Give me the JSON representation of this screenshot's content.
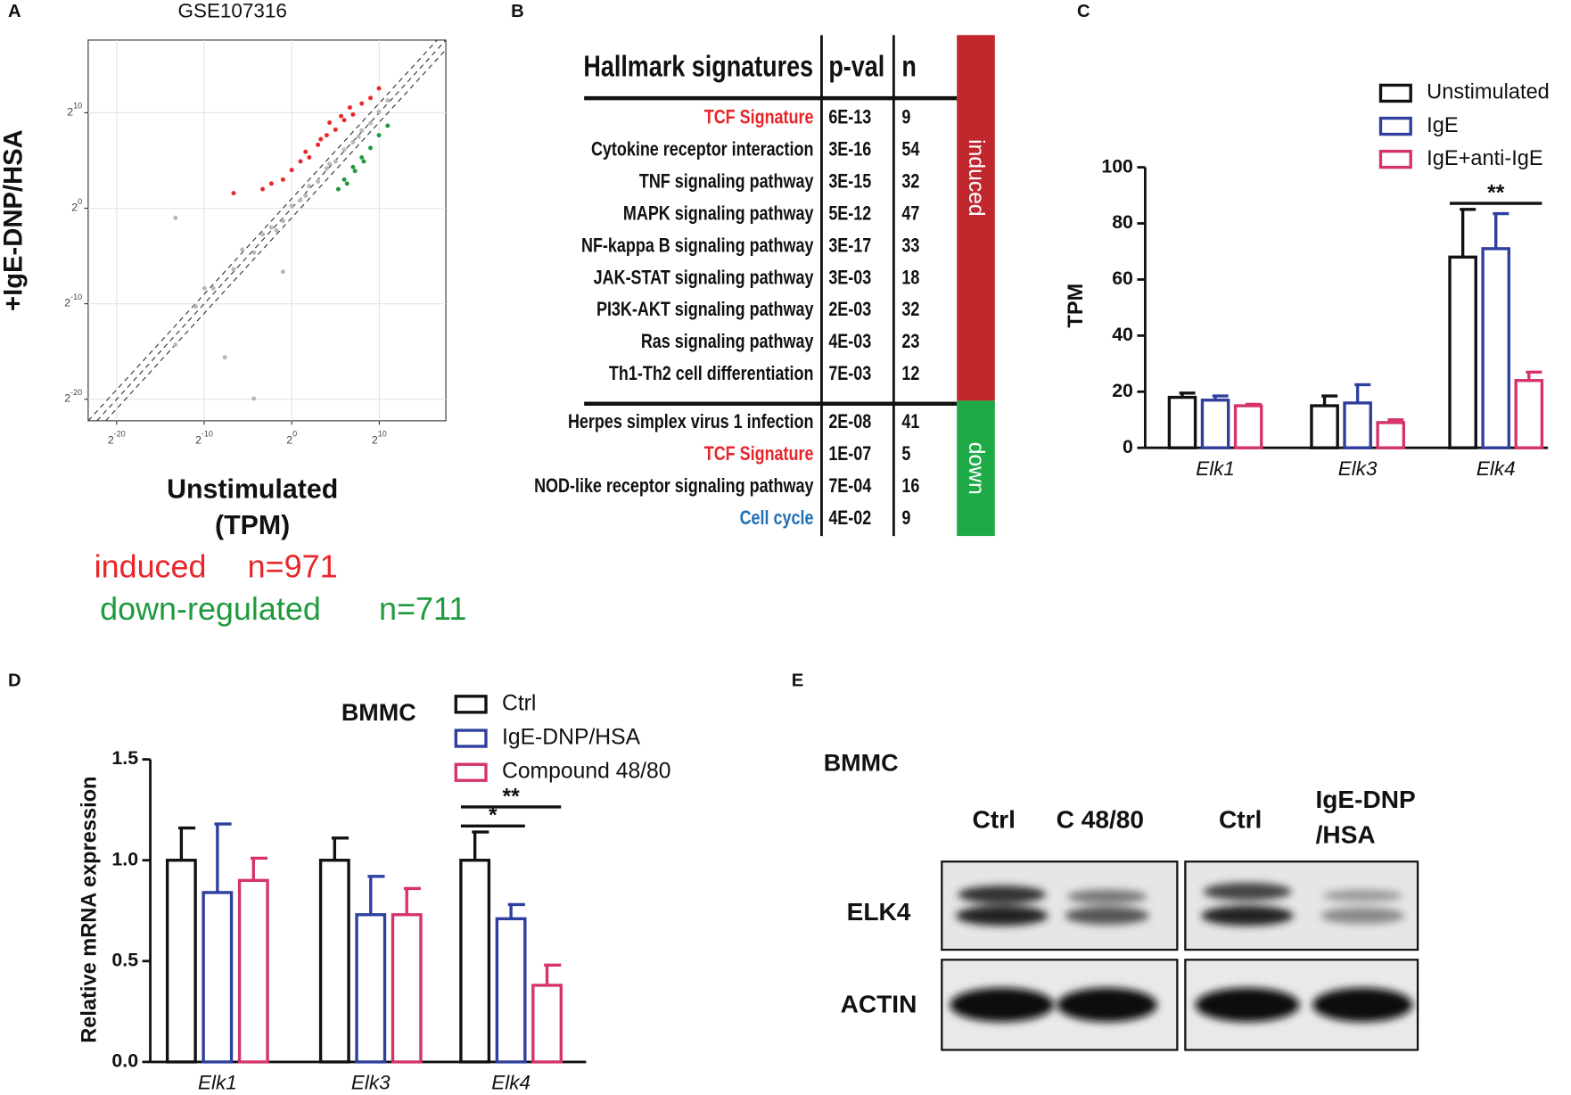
{
  "chart_data": [
    {
      "type": "scatter",
      "panel": "A",
      "title": "GSE107316",
      "ylabel": "+IgE-DNP/HSA",
      "xlabel": [
        "Unstimulated",
        "(TPM)"
      ],
      "log_base": 2,
      "xlim": [
        1e-07,
        200000
      ],
      "ylim": [
        2e-07,
        200000
      ],
      "xticks": [
        {
          "value": 9.5367431640625e-07,
          "label": "2",
          "exponent": "-20"
        },
        {
          "value": 0.0009765625,
          "label": "2",
          "exponent": "-10"
        },
        {
          "value": 1,
          "label": "2",
          "exponent": "0"
        },
        {
          "value": 1024,
          "label": "2",
          "exponent": "10"
        }
      ],
      "yticks": [
        {
          "value": 9.5367431640625e-07,
          "label": "2",
          "exponent": "-20"
        },
        {
          "value": 0.0009765625,
          "label": "2",
          "exponent": "-10"
        },
        {
          "value": 1,
          "label": "2",
          "exponent": "0"
        },
        {
          "value": 1024,
          "label": "2",
          "exponent": "10"
        }
      ],
      "grid": true,
      "series": [
        {
          "color": "#b8b8b8",
          "x": [
            0.01,
            0.05,
            0.1,
            0.5,
            1,
            2,
            4,
            8,
            16,
            32,
            64,
            128,
            256,
            512,
            1000,
            0.002,
            0.02,
            0.3,
            3,
            20,
            200,
            0.0001,
            0.001,
            0.5,
            0.005,
            0.0001,
            0.05,
            0.0005,
            2000,
            0.2
          ],
          "y": [
            0.012,
            0.04,
            0.15,
            0.4,
            1.2,
            1.8,
            5,
            7,
            18,
            30,
            70,
            120,
            280,
            480,
            1100,
            0.003,
            0.05,
            0.2,
            2.5,
            25,
            180,
            5e-05,
            0.003,
            0.01,
            2e-05,
            0.5,
            1e-06,
            0.0008,
            2500,
            0.25
          ]
        },
        {
          "name": "induced",
          "count_label": "n=971",
          "color": "#e8262a",
          "x": [
            0.01,
            0.1,
            0.5,
            1,
            2,
            4,
            8,
            16,
            32,
            64,
            128,
            256,
            512,
            0.2,
            3,
            10,
            50,
            100,
            1000,
            20
          ],
          "y": [
            3,
            4,
            8,
            16,
            30,
            40,
            100,
            200,
            300,
            600,
            900,
            2000,
            3000,
            6,
            60,
            150,
            800,
            1500,
            6000,
            500
          ]
        },
        {
          "name": "down-regulated",
          "count_label": "n=711",
          "color": "#1f9a3e",
          "x": [
            64,
            128,
            256,
            512,
            300,
            150,
            1000,
            80,
            40,
            2000
          ],
          "y": [
            8,
            20,
            40,
            80,
            30,
            15,
            200,
            6,
            4,
            400
          ]
        }
      ]
    },
    {
      "type": "bar",
      "panel": "C",
      "ylabel": "TPM",
      "categories": [
        "Elk1",
        "Elk3",
        "Elk4"
      ],
      "ylim": [
        0,
        100
      ],
      "yticks": [
        0,
        20,
        40,
        60,
        80,
        100
      ],
      "significance": [
        "**"
      ],
      "series": [
        {
          "name": "Unstimulated",
          "color": "#111111",
          "values": [
            18,
            15,
            68
          ],
          "errors": [
            1.5,
            3.5,
            17
          ]
        },
        {
          "name": "IgE",
          "color": "#2e3f9e",
          "values": [
            17,
            16,
            71
          ],
          "errors": [
            1.5,
            6.5,
            12.5
          ]
        },
        {
          "name": "IgE+anti-IgE",
          "color": "#d6336c",
          "values": [
            15,
            9,
            24
          ],
          "errors": [
            0.5,
            1,
            3
          ]
        }
      ]
    },
    {
      "type": "bar",
      "panel": "D",
      "title": "BMMC",
      "ylabel": "Relative mRNA expression",
      "categories": [
        "Elk1",
        "Elk3",
        "Elk4"
      ],
      "ylim": [
        0,
        1.5
      ],
      "yticks": [
        {
          "value": 0,
          "label": "0.0"
        },
        {
          "value": 0.5,
          "label": "0.5"
        },
        {
          "value": 1,
          "label": "1.0"
        },
        {
          "value": 1.5,
          "label": "1.5"
        }
      ],
      "significance": [
        "*",
        "**"
      ],
      "series": [
        {
          "name": "Ctrl",
          "color": "#111111",
          "values": [
            1,
            1,
            1
          ],
          "errors": [
            0.16,
            0.11,
            0.14
          ]
        },
        {
          "name": "IgE-DNP/HSA",
          "color": "#2e3f9e",
          "values": [
            0.84,
            0.73,
            0.71
          ],
          "errors": [
            0.34,
            0.19,
            0.07
          ]
        },
        {
          "name": "Compound 48/80",
          "color": "#d6336c",
          "values": [
            0.9,
            0.73,
            0.38
          ],
          "errors": [
            0.11,
            0.13,
            0.1
          ]
        }
      ]
    }
  ],
  "table": {
    "panel": "B",
    "header": [
      "Hallmark signatures",
      "p-val",
      "n"
    ],
    "groups": [
      {
        "label": "induced",
        "color": "#c0282d",
        "rows": [
          {
            "name": "TCF Signature",
            "pval": "6E-13",
            "n": 9,
            "color": "#e8262a"
          },
          {
            "name": "Cytokine receptor interaction",
            "pval": "3E-16",
            "n": 54,
            "color": "#111111"
          },
          {
            "name": "TNF signaling pathway",
            "pval": "3E-15",
            "n": 32,
            "color": "#111111"
          },
          {
            "name": "MAPK signaling pathway",
            "pval": "5E-12",
            "n": 47,
            "color": "#111111"
          },
          {
            "name": "NF-kappa B signaling pathway",
            "pval": "3E-17",
            "n": 33,
            "color": "#111111"
          },
          {
            "name": "JAK-STAT signaling pathway",
            "pval": "3E-03",
            "n": 18,
            "color": "#111111"
          },
          {
            "name": "PI3K-AKT signaling pathway",
            "pval": "2E-03",
            "n": 32,
            "color": "#111111"
          },
          {
            "name": "Ras signaling pathway",
            "pval": "4E-03",
            "n": 23,
            "color": "#111111"
          },
          {
            "name": "Th1-Th2 cell differentiation",
            "pval": "7E-03",
            "n": 12,
            "color": "#111111"
          }
        ]
      },
      {
        "label": "down",
        "color": "#1faa48",
        "rows": [
          {
            "name": "Herpes simplex virus 1 infection",
            "pval": "2E-08",
            "n": 41,
            "color": "#111111"
          },
          {
            "name": "TCF Signature",
            "pval": "1E-07",
            "n": 5,
            "color": "#e8262a"
          },
          {
            "name": "NOD-like receptor signaling pathway",
            "pval": "7E-04",
            "n": 16,
            "color": "#111111"
          },
          {
            "name": "Cell cycle",
            "pval": "4E-02",
            "n": 9,
            "color": "#1f6fb5"
          }
        ]
      }
    ]
  },
  "blot": {
    "panel": "E",
    "title": "BMMC",
    "lanes": [
      [
        "Ctrl"
      ],
      [
        "C 48/80"
      ],
      [
        "Ctrl"
      ],
      [
        "IgE-DNP",
        "/HSA"
      ]
    ],
    "rows": [
      "ELK4",
      "ACTIN"
    ]
  }
}
